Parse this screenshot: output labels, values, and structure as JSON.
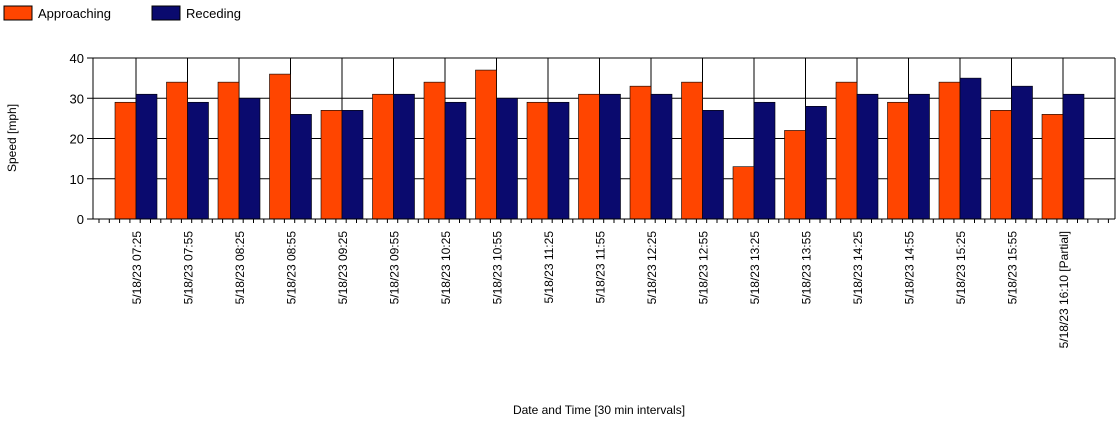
{
  "colors": {
    "approaching": "#FF4500",
    "receding": "#0A0A6E",
    "grid": "#000000",
    "bar_outline": "#000000"
  },
  "chart_data": {
    "type": "bar",
    "title": "",
    "xlabel": "Date and Time [30 min intervals]",
    "ylabel": "Speed [mph]",
    "ylim": [
      0,
      40
    ],
    "yticks": [
      "0",
      "10",
      "20",
      "30",
      "40"
    ],
    "grid": true,
    "legend_position": "top-left",
    "categories": [
      "5/18/23 07:25",
      "5/18/23 07:55",
      "5/18/23 08:25",
      "5/18/23 08:55",
      "5/18/23 09:25",
      "5/18/23 09:55",
      "5/18/23 10:25",
      "5/18/23 10:55",
      "5/18/23 11:25",
      "5/18/23 11:55",
      "5/18/23 12:25",
      "5/18/23 12:55",
      "5/18/23 13:25",
      "5/18/23 13:55",
      "5/18/23 14:25",
      "5/18/23 14:55",
      "5/18/23 15:25",
      "5/18/23 15:55",
      "5/18/23 16:10 [Partial]"
    ],
    "series": [
      {
        "name": "Approaching",
        "color": "#FF4500",
        "values": [
          29,
          34,
          34,
          36,
          27,
          31,
          34,
          37,
          29,
          31,
          33,
          34,
          13,
          22,
          34,
          29,
          34,
          27,
          26
        ]
      },
      {
        "name": "Receding",
        "color": "#0A0A6E",
        "values": [
          31,
          29,
          30,
          26,
          27,
          31,
          29,
          30,
          29,
          31,
          31,
          27,
          29,
          28,
          31,
          31,
          35,
          33,
          31
        ]
      }
    ]
  }
}
